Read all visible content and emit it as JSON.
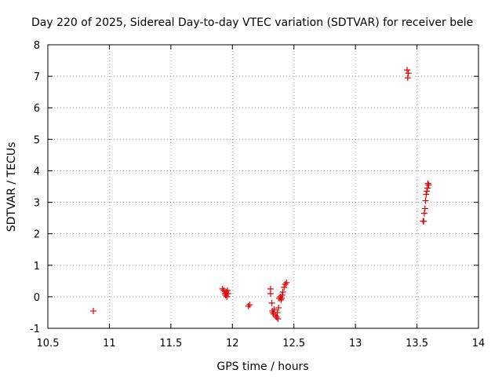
{
  "chart_data": {
    "type": "scatter",
    "title": "Day 220 of 2025, Sidereal Day-to-day VTEC variation (SDTVAR) for receiver bele",
    "xlabel": "GPS time / hours",
    "ylabel": "SDTVAR / TECUs",
    "xlim": [
      10.5,
      14
    ],
    "ylim": [
      -1,
      8
    ],
    "xticks": [
      10.5,
      11,
      11.5,
      12,
      12.5,
      13,
      13.5,
      14
    ],
    "xtick_labels": [
      "10.5",
      "11",
      "11.5",
      "12",
      "12.5",
      "13",
      "13.5",
      "14"
    ],
    "yticks": [
      -1,
      0,
      1,
      2,
      3,
      4,
      5,
      6,
      7,
      8
    ],
    "ytick_labels": [
      "-1",
      "0",
      "1",
      "2",
      "3",
      "4",
      "5",
      "6",
      "7",
      "8"
    ],
    "grid": true,
    "marker": "+",
    "color": "#e00000",
    "series": [
      {
        "name": "SDTVAR",
        "points": [
          [
            10.87,
            -0.45
          ],
          [
            11.92,
            0.25
          ],
          [
            11.93,
            0.2
          ],
          [
            11.94,
            0.1
          ],
          [
            11.945,
            0.05
          ],
          [
            11.95,
            0.15
          ],
          [
            11.955,
            0.0
          ],
          [
            11.96,
            0.2
          ],
          [
            11.965,
            0.1
          ],
          [
            12.13,
            -0.3
          ],
          [
            12.14,
            -0.25
          ],
          [
            12.31,
            0.25
          ],
          [
            12.31,
            0.1
          ],
          [
            12.32,
            -0.2
          ],
          [
            12.325,
            -0.45
          ],
          [
            12.33,
            -0.5
          ],
          [
            12.335,
            -0.55
          ],
          [
            12.34,
            -0.4
          ],
          [
            12.35,
            -0.6
          ],
          [
            12.36,
            -0.65
          ],
          [
            12.365,
            -0.5
          ],
          [
            12.37,
            -0.7
          ],
          [
            12.375,
            -0.35
          ],
          [
            12.38,
            -0.05
          ],
          [
            12.39,
            0.0
          ],
          [
            12.395,
            -0.1
          ],
          [
            12.4,
            -0.05
          ],
          [
            12.405,
            0.05
          ],
          [
            12.41,
            0.15
          ],
          [
            12.42,
            0.3
          ],
          [
            12.43,
            0.4
          ],
          [
            12.44,
            0.45
          ],
          [
            13.42,
            7.2
          ],
          [
            13.425,
            6.95
          ],
          [
            13.43,
            7.1
          ],
          [
            13.55,
            2.4
          ],
          [
            13.555,
            2.4
          ],
          [
            13.56,
            2.65
          ],
          [
            13.565,
            2.8
          ],
          [
            13.57,
            3.05
          ],
          [
            13.575,
            3.25
          ],
          [
            13.58,
            3.35
          ],
          [
            13.585,
            3.45
          ],
          [
            13.59,
            3.6
          ],
          [
            13.595,
            3.55
          ]
        ]
      }
    ]
  }
}
